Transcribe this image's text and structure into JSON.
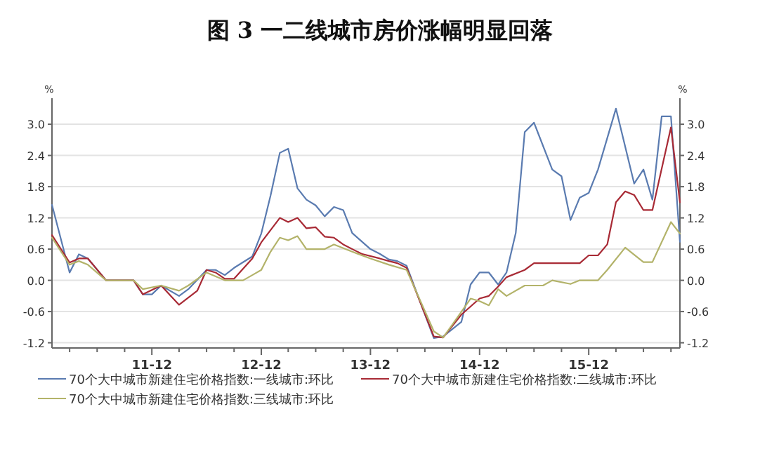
{
  "chart_data": {
    "type": "line",
    "title": "图 3 一二线城市房价涨幅明显回落",
    "ylabel": "%",
    "y2label": "%",
    "xlim": [
      "2011-01",
      "2016-10"
    ],
    "xticks": [
      {
        "value": "2011-03",
        "label": null
      },
      {
        "value": "2011-06",
        "label": null
      },
      {
        "value": "2011-09",
        "label": null
      },
      {
        "value": "2011-12",
        "label": "11-12"
      },
      {
        "value": "2012-03",
        "label": null
      },
      {
        "value": "2012-06",
        "label": null
      },
      {
        "value": "2012-09",
        "label": null
      },
      {
        "value": "2012-12",
        "label": "12-12"
      },
      {
        "value": "2013-03",
        "label": null
      },
      {
        "value": "2013-06",
        "label": null
      },
      {
        "value": "2013-09",
        "label": null
      },
      {
        "value": "2013-12",
        "label": "13-12"
      },
      {
        "value": "2014-03",
        "label": null
      },
      {
        "value": "2014-06",
        "label": null
      },
      {
        "value": "2014-09",
        "label": null
      },
      {
        "value": "2014-12",
        "label": "14-12"
      },
      {
        "value": "2015-03",
        "label": null
      },
      {
        "value": "2015-06",
        "label": null
      },
      {
        "value": "2015-09",
        "label": null
      },
      {
        "value": "2015-12",
        "label": "15-12"
      },
      {
        "value": "2016-03",
        "label": null
      },
      {
        "value": "2016-06",
        "label": null
      },
      {
        "value": "2016-09",
        "label": null
      }
    ],
    "ylim": [
      -1.3,
      3.5
    ],
    "yticks": [
      {
        "value": -1.2,
        "label": "-1.2"
      },
      {
        "value": -0.6,
        "label": "-0.6"
      },
      {
        "value": 0,
        "label": "0.0"
      },
      {
        "value": 0.6,
        "label": "0.6"
      },
      {
        "value": 1.2,
        "label": "1.2"
      },
      {
        "value": 1.8,
        "label": "1.8"
      },
      {
        "value": 2.4,
        "label": "2.4"
      },
      {
        "value": 3,
        "label": "3.0"
      }
    ],
    "y2lim": [
      -1.3,
      3.5
    ],
    "y2ticks": [
      {
        "value": -1.2,
        "label": "-1.2"
      },
      {
        "value": -0.6,
        "label": "-0.6"
      },
      {
        "value": 0,
        "label": "0.0"
      },
      {
        "value": 0.6,
        "label": "0.6"
      },
      {
        "value": 1.2,
        "label": "1.2"
      },
      {
        "value": 1.8,
        "label": "1.8"
      },
      {
        "value": 2.4,
        "label": "2.4"
      },
      {
        "value": 3,
        "label": "3.0"
      }
    ],
    "grid": "y",
    "legend": "bottom",
    "marker": "none",
    "line_style": "solid",
    "series": [
      {
        "name": "70个大中城市新建住宅价格指数:一线城市:环比",
        "color": "#5a7bb0",
        "x": [
          "2011-01",
          "2011-03",
          "2011-04",
          "2011-05",
          "2011-07",
          "2011-10",
          "2011-11",
          "2011-12",
          "2012-01",
          "2012-03",
          "2012-04",
          "2012-06",
          "2012-07",
          "2012-08",
          "2012-09",
          "2012-11",
          "2012-12",
          "2013-01",
          "2013-02",
          "2013-03",
          "2013-04",
          "2013-05",
          "2013-06",
          "2013-07",
          "2013-08",
          "2013-09",
          "2013-10",
          "2013-12",
          "2014-01",
          "2014-02",
          "2014-03",
          "2014-04",
          "2014-07",
          "2014-08",
          "2014-10",
          "2014-11",
          "2014-12",
          "2015-01",
          "2015-02",
          "2015-03",
          "2015-04",
          "2015-05",
          "2015-06",
          "2015-08",
          "2015-09",
          "2015-10",
          "2015-11",
          "2015-12",
          "2016-01",
          "2016-03",
          "2016-05",
          "2016-06",
          "2016-07",
          "2016-08",
          "2016-09",
          "2016-10"
        ],
        "values": [
          1.45,
          0.15,
          0.5,
          0.42,
          0.0,
          0.0,
          -0.27,
          -0.27,
          -0.1,
          -0.3,
          -0.17,
          0.2,
          0.2,
          0.1,
          0.24,
          0.46,
          0.9,
          1.63,
          2.45,
          2.53,
          1.77,
          1.55,
          1.44,
          1.23,
          1.41,
          1.35,
          0.91,
          0.6,
          0.51,
          0.4,
          0.37,
          0.28,
          -1.11,
          -1.08,
          -0.8,
          -0.08,
          0.15,
          0.15,
          -0.08,
          0.15,
          0.91,
          2.85,
          3.03,
          2.13,
          2.0,
          1.16,
          1.59,
          1.68,
          2.13,
          3.3,
          1.86,
          2.13,
          1.55,
          3.15,
          3.15,
          0.74
        ]
      },
      {
        "name": "70个大中城市新建住宅价格指数:二线城市:环比",
        "color": "#a82a35",
        "x": [
          "2011-01",
          "2011-03",
          "2011-04",
          "2011-05",
          "2011-07",
          "2011-10",
          "2011-11",
          "2012-01",
          "2012-03",
          "2012-05",
          "2012-06",
          "2012-07",
          "2012-08",
          "2012-09",
          "2012-11",
          "2012-12",
          "2013-02",
          "2013-03",
          "2013-04",
          "2013-05",
          "2013-06",
          "2013-07",
          "2013-08",
          "2013-09",
          "2013-11",
          "2014-01",
          "2014-02",
          "2014-03",
          "2014-04",
          "2014-07",
          "2014-08",
          "2014-10",
          "2014-12",
          "2015-01",
          "2015-02",
          "2015-03",
          "2015-05",
          "2015-06",
          "2015-11",
          "2015-12",
          "2016-01",
          "2016-02",
          "2016-03",
          "2016-04",
          "2016-05",
          "2016-06",
          "2016-07",
          "2016-09",
          "2016-10"
        ],
        "values": [
          0.87,
          0.34,
          0.42,
          0.42,
          0.0,
          0.0,
          -0.27,
          -0.1,
          -0.47,
          -0.2,
          0.2,
          0.15,
          0.03,
          0.03,
          0.42,
          0.73,
          1.2,
          1.12,
          1.2,
          1.0,
          1.02,
          0.84,
          0.82,
          0.69,
          0.51,
          0.42,
          0.37,
          0.33,
          0.24,
          -1.08,
          -1.1,
          -0.66,
          -0.35,
          -0.3,
          -0.12,
          0.06,
          0.2,
          0.33,
          0.33,
          0.48,
          0.48,
          0.69,
          1.5,
          1.71,
          1.64,
          1.35,
          1.35,
          2.94,
          1.5
        ]
      },
      {
        "name": "70个大中城市新建住宅价格指数:三线城市:环比",
        "color": "#b3b36a",
        "x": [
          "2011-01",
          "2011-03",
          "2011-04",
          "2011-05",
          "2011-07",
          "2011-10",
          "2011-11",
          "2012-01",
          "2012-03",
          "2012-04",
          "2012-06",
          "2012-08",
          "2012-10",
          "2012-11",
          "2012-12",
          "2013-01",
          "2013-02",
          "2013-03",
          "2013-04",
          "2013-05",
          "2013-07",
          "2013-08",
          "2013-10",
          "2013-12",
          "2014-02",
          "2014-04",
          "2014-07",
          "2014-08",
          "2014-09",
          "2014-11",
          "2014-12",
          "2015-01",
          "2015-02",
          "2015-03",
          "2015-05",
          "2015-07",
          "2015-08",
          "2015-10",
          "2015-11",
          "2016-01",
          "2016-02",
          "2016-04",
          "2016-06",
          "2016-07",
          "2016-09",
          "2016-10"
        ],
        "values": [
          0.82,
          0.3,
          0.37,
          0.3,
          0.0,
          0.0,
          -0.17,
          -0.1,
          -0.2,
          -0.1,
          0.15,
          0.0,
          0.0,
          0.1,
          0.2,
          0.55,
          0.82,
          0.77,
          0.85,
          0.6,
          0.6,
          0.69,
          0.55,
          0.42,
          0.3,
          0.2,
          -0.98,
          -1.1,
          -0.85,
          -0.35,
          -0.4,
          -0.48,
          -0.17,
          -0.3,
          -0.1,
          -0.1,
          0.0,
          -0.07,
          0.0,
          0.0,
          0.2,
          0.63,
          0.35,
          0.35,
          1.12,
          0.9
        ]
      }
    ]
  }
}
